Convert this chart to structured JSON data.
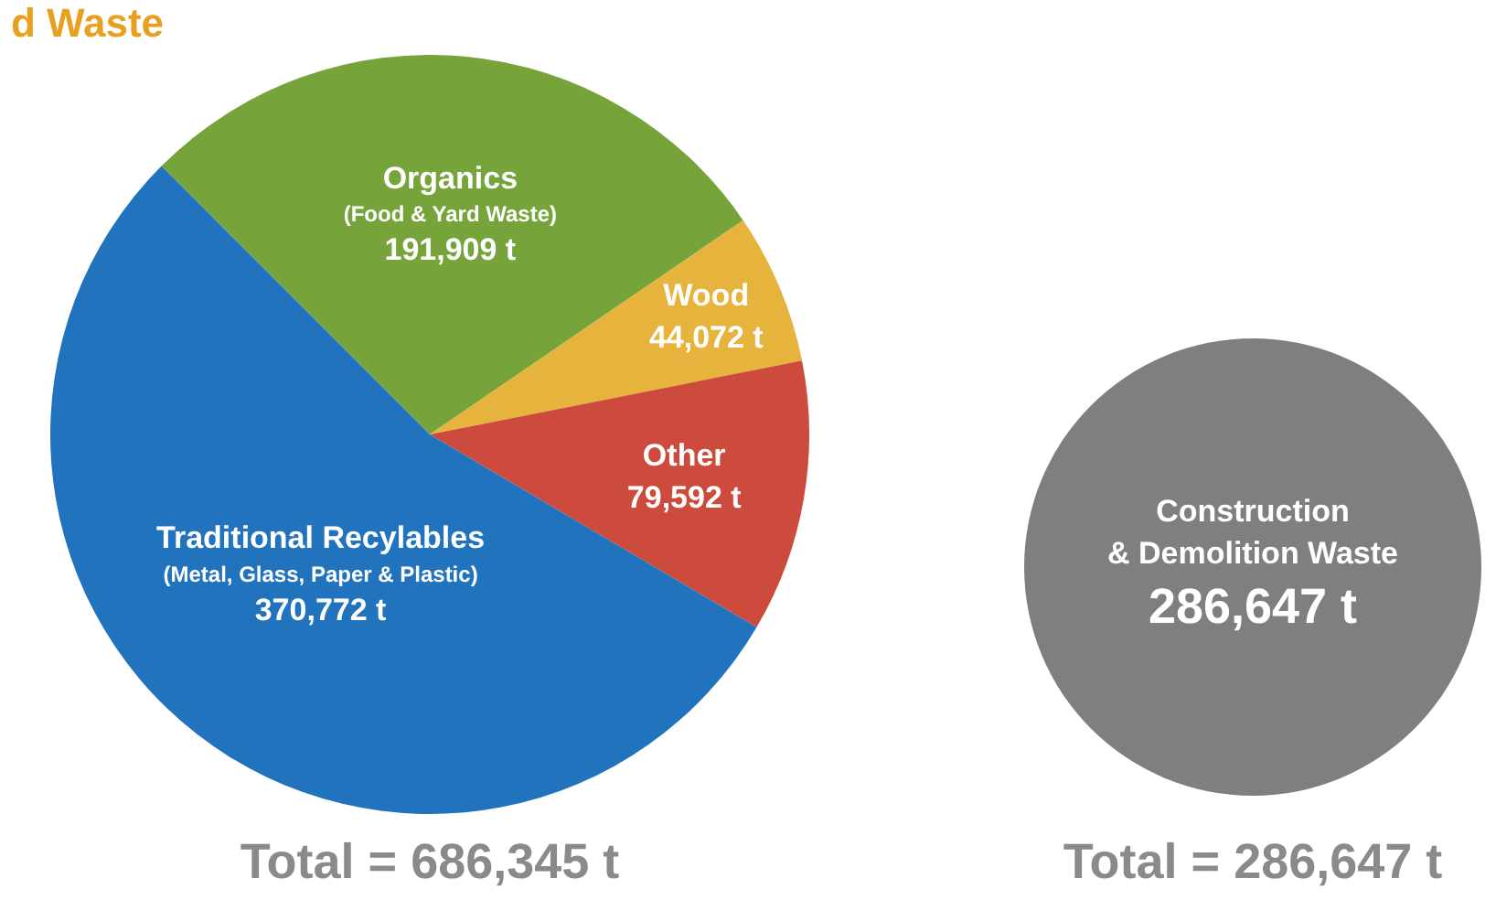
{
  "chart_data": [
    {
      "type": "pie",
      "title": "d Waste",
      "categories": [
        "Organics\n(Food & Yard Waste)",
        "Wood",
        "Other",
        "Traditional Recylables\n(Metal, Glass, Paper & Plastic)"
      ],
      "values": [
        191909,
        44072,
        79592,
        370772
      ],
      "colors": [
        "#76a43a",
        "#e6b43c",
        "#cc4b3c",
        "#2173bd"
      ],
      "value_labels": [
        "191,909 t",
        "44,072 t",
        "79,592 t",
        "370,772 t"
      ],
      "annotations": [
        "Total = 686,345 t"
      ]
    },
    {
      "type": "pie",
      "categories": [
        "Construction\n& Demolition Waste"
      ],
      "values": [
        286647
      ],
      "colors": [
        "#7f7f7f"
      ],
      "value_labels": [
        "286,647 t"
      ],
      "annotations": [
        "Total = 286,647 t"
      ]
    }
  ]
}
